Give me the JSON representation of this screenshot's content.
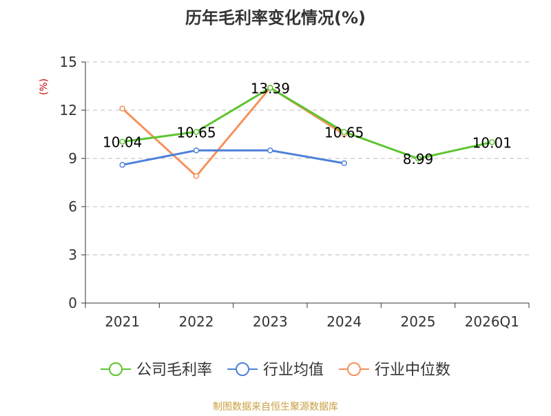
{
  "title": "历年毛利率变化情况(%)",
  "source": "制图数据来自恒生聚源数据库",
  "colors": {
    "title": "#333333",
    "axis": "#333333",
    "grid": "#bbbbbb",
    "unit": "#cc0000",
    "source": "#c8a040"
  },
  "chart_data": {
    "type": "line",
    "categories": [
      "2021",
      "2022",
      "2023",
      "2024",
      "2025",
      "2026Q1"
    ],
    "ylabel": "(%)",
    "ylim": [
      0,
      15
    ],
    "yticks": [
      0,
      3,
      6,
      9,
      12,
      15
    ],
    "grid": true,
    "legend_position": "bottom",
    "series": [
      {
        "name": "公司毛利率",
        "color": "#5cc42e",
        "values": [
          10.04,
          10.65,
          13.39,
          10.65,
          8.99,
          10.01
        ],
        "labels": [
          "10.04",
          "10.65",
          "13.39",
          "10.65",
          "8.99",
          "10.01"
        ]
      },
      {
        "name": "行业均值",
        "color": "#4d80d9",
        "values": [
          8.6,
          9.5,
          9.5,
          8.7,
          null,
          null
        ]
      },
      {
        "name": "行业中位数",
        "color": "#f5915a",
        "values": [
          12.1,
          7.9,
          13.4,
          10.5,
          null,
          null
        ]
      }
    ]
  }
}
